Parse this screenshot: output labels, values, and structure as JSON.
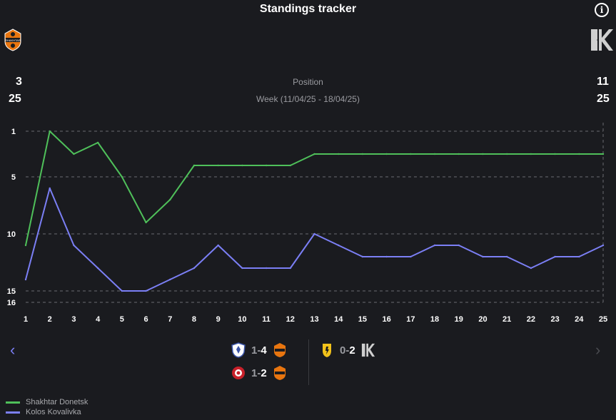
{
  "header": {
    "title": "Standings tracker",
    "info_icon": "info-icon",
    "info_symbol": "i"
  },
  "teams": {
    "home": {
      "name": "Shakhtar Donetsk",
      "current_position": "3",
      "total_teams": "25",
      "color": "#4fc05a",
      "logo_icon": "shakhtar-donetsk-logo-icon",
      "logo_text": "SHAKHTAR"
    },
    "away": {
      "name": "Kolos Kovalivka",
      "current_position": "11",
      "total_teams": "25",
      "color": "#7b7ff5",
      "logo_icon": "kolos-kovalivka-logo-icon",
      "logo_text": "K"
    }
  },
  "labels": {
    "metric": "Position",
    "week": "Week (11/04/25 - 18/04/25)"
  },
  "chart_data": {
    "type": "line",
    "title": "Standings tracker",
    "xlabel": "",
    "ylabel": "Position",
    "y_inverted": true,
    "ylim": [
      1,
      16
    ],
    "xlim": [
      1,
      25
    ],
    "y_ticks": [
      1,
      5,
      10,
      15,
      16
    ],
    "x_ticks": [
      1,
      2,
      3,
      4,
      5,
      6,
      7,
      8,
      9,
      10,
      11,
      12,
      13,
      14,
      15,
      16,
      17,
      18,
      19,
      20,
      21,
      22,
      23,
      24,
      25
    ],
    "grid": "dashed horizontal",
    "current_round_line": 25,
    "x": [
      1,
      2,
      3,
      4,
      5,
      6,
      7,
      8,
      9,
      10,
      11,
      12,
      13,
      14,
      15,
      16,
      17,
      18,
      19,
      20,
      21,
      22,
      23,
      24,
      25
    ],
    "series": [
      {
        "name": "Shakhtar Donetsk",
        "color": "#4fc05a",
        "values": [
          11,
          1,
          3,
          2,
          5,
          9,
          7,
          4,
          4,
          4,
          4,
          4,
          3,
          3,
          3,
          3,
          3,
          3,
          3,
          3,
          3,
          3,
          3,
          3,
          3
        ]
      },
      {
        "name": "Kolos Kovalivka",
        "color": "#7b7ff5",
        "values": [
          14,
          6,
          11,
          13,
          15,
          15,
          14,
          13,
          11,
          13,
          13,
          13,
          10,
          11,
          12,
          12,
          12,
          11,
          11,
          12,
          12,
          13,
          12,
          12,
          11
        ]
      }
    ]
  },
  "matches": {
    "prev_arrow": "‹",
    "next_arrow": "›",
    "left": [
      {
        "home_logo": "opponent-a-logo-icon",
        "home_score": "1",
        "sep": "-",
        "away_score": "4",
        "away_logo": "shakhtar-donetsk-logo-icon",
        "winner": "away"
      },
      {
        "home_logo": "opponent-b-logo-icon",
        "home_score": "1",
        "sep": "-",
        "away_score": "2",
        "away_logo": "shakhtar-donetsk-logo-icon",
        "winner": "away"
      }
    ],
    "right": [
      {
        "home_logo": "opponent-c-logo-icon",
        "home_score": "0",
        "sep": "-",
        "away_score": "2",
        "away_logo": "kolos-kovalivka-logo-icon",
        "winner": "away"
      }
    ]
  },
  "legend": [
    {
      "label": "Shakhtar Donetsk",
      "color": "#4fc05a"
    },
    {
      "label": "Kolos Kovalivka",
      "color": "#7b7ff5"
    }
  ]
}
